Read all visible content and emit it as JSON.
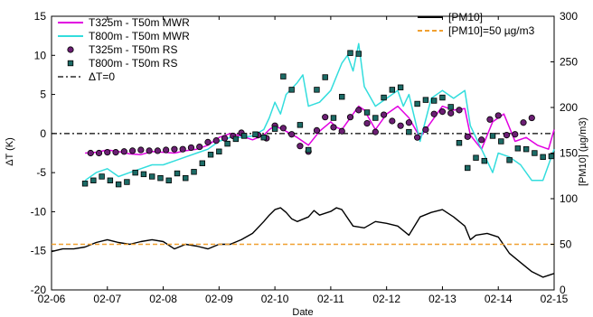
{
  "chart_data": {
    "type": "line",
    "xlabel": "Date",
    "ylabel_left": "ΔT (K)",
    "ylabel_right": "[PM10] (µg/m3)",
    "xlim": [
      0,
      9
    ],
    "ylim_left": [
      -20,
      15
    ],
    "ylim_right": [
      0,
      300
    ],
    "x_tick_values": [
      0,
      1,
      2,
      3,
      4,
      5,
      6,
      7,
      8,
      9
    ],
    "x_tick_labels": [
      "02-06",
      "02-07",
      "02-08",
      "02-09",
      "02-10",
      "02-11",
      "02-12",
      "02-13",
      "02-14",
      "02-15"
    ],
    "y_left_ticks": [
      -20,
      -15,
      -10,
      -5,
      0,
      5,
      10,
      15
    ],
    "y_right_ticks": [
      0,
      50,
      100,
      150,
      200,
      250,
      300
    ],
    "grid": false,
    "legend_left_placement": "top-left",
    "legend_right_placement": "top-right",
    "colors": {
      "mwr325": "#e100e1",
      "mwr800": "#33dddd",
      "rs325": "#6b1f73",
      "rs800": "#1c6b66",
      "pm10": "#000000",
      "threshold": "#f0a030",
      "zero": "#000000"
    },
    "legend_left": [
      {
        "label": "T325m - T50m MWR",
        "key": "mwr325"
      },
      {
        "label": "T800m - T50m MWR",
        "key": "mwr800"
      },
      {
        "label": "T325m - T50m RS",
        "key": "rs325"
      },
      {
        "label": "T800m - T50m RS",
        "key": "rs800"
      },
      {
        "label": "ΔT=0",
        "key": "zero"
      }
    ],
    "legend_right": [
      {
        "label": "[PM10]",
        "key": "pm10"
      },
      {
        "label": "[PM10]=50 µg/m3",
        "key": "threshold"
      }
    ],
    "series": [
      {
        "name": "T325m - T50m MWR",
        "axis": "left",
        "kind": "line",
        "x": [
          0.6,
          0.8,
          1.0,
          1.2,
          1.4,
          1.6,
          1.8,
          2.0,
          2.2,
          2.4,
          2.6,
          2.8,
          3.0,
          3.2,
          3.4,
          3.6,
          3.8,
          3.9,
          4.0,
          4.2,
          4.4,
          4.6,
          4.8,
          5.0,
          5.1,
          5.2,
          5.4,
          5.5,
          5.6,
          5.8,
          6.0,
          6.2,
          6.4,
          6.6,
          6.8,
          7.0,
          7.2,
          7.4,
          7.5,
          7.7,
          7.9,
          8.1,
          8.3,
          8.5,
          8.7,
          8.9,
          9.0
        ],
        "y": [
          -2.5,
          -2.4,
          -2.1,
          -2.3,
          -2.6,
          -2.7,
          -2.3,
          -2.4,
          -2.5,
          -2.2,
          -2.0,
          -1.5,
          -0.5,
          0.0,
          -0.3,
          -0.8,
          -0.2,
          0.5,
          1.0,
          0.3,
          -0.5,
          -1.5,
          0.3,
          1.5,
          0.8,
          0.5,
          2.5,
          3.5,
          3.0,
          0.5,
          2.5,
          3.5,
          2.0,
          -0.5,
          1.5,
          3.5,
          3.0,
          3.2,
          -0.2,
          -2.0,
          1.5,
          2.5,
          -1.0,
          -0.5,
          -1.5,
          -2.0,
          0.5
        ]
      },
      {
        "name": "T800m - T50m MWR",
        "axis": "left",
        "kind": "line",
        "x": [
          0.6,
          0.8,
          1.0,
          1.2,
          1.4,
          1.6,
          1.8,
          2.0,
          2.2,
          2.4,
          2.6,
          2.8,
          3.0,
          3.2,
          3.4,
          3.6,
          3.8,
          3.9,
          4.0,
          4.1,
          4.2,
          4.4,
          4.5,
          4.6,
          4.8,
          5.0,
          5.2,
          5.3,
          5.4,
          5.5,
          5.6,
          5.8,
          6.0,
          6.2,
          6.3,
          6.4,
          6.6,
          6.8,
          7.0,
          7.2,
          7.4,
          7.5,
          7.7,
          7.9,
          8.0,
          8.2,
          8.4,
          8.6,
          8.8,
          9.0
        ],
        "y": [
          -6.0,
          -5.0,
          -4.5,
          -5.5,
          -5.0,
          -4.5,
          -4.0,
          -4.0,
          -3.5,
          -3.0,
          -2.5,
          -2.0,
          -1.0,
          -0.5,
          -0.5,
          -0.3,
          0.5,
          2.0,
          4.0,
          2.5,
          5.0,
          6.5,
          7.5,
          3.5,
          4.0,
          5.5,
          9.0,
          10.0,
          8.0,
          11.5,
          6.0,
          3.5,
          4.5,
          5.5,
          3.5,
          5.0,
          -1.0,
          4.5,
          5.5,
          4.5,
          5.5,
          1.0,
          -2.0,
          -5.0,
          -2.5,
          -3.0,
          -4.0,
          -6.0,
          -6.0,
          -2.0
        ]
      },
      {
        "name": "T325m - T50m RS",
        "axis": "left",
        "kind": "scatter",
        "x": [
          0.7,
          0.85,
          1.0,
          1.15,
          1.3,
          1.45,
          1.6,
          1.75,
          1.9,
          2.05,
          2.2,
          2.35,
          2.5,
          2.65,
          2.8,
          2.95,
          3.1,
          3.25,
          3.4,
          3.7,
          3.85,
          4.0,
          4.15,
          4.3,
          4.45,
          4.6,
          4.75,
          4.9,
          5.05,
          5.2,
          5.35,
          5.5,
          5.65,
          5.8,
          5.95,
          6.1,
          6.25,
          6.4,
          6.55,
          6.7,
          6.85,
          7.0,
          7.15,
          7.3,
          7.45,
          7.7,
          7.85,
          8.0,
          8.15,
          8.3,
          8.45,
          8.6
        ],
        "y": [
          -2.5,
          -2.5,
          -2.4,
          -2.4,
          -2.3,
          -2.2,
          -2.1,
          -2.2,
          -2.2,
          -2.1,
          -2.0,
          -2.0,
          -1.8,
          -1.7,
          -1.1,
          -0.9,
          -0.6,
          -0.3,
          0.1,
          -0.2,
          -0.6,
          1.0,
          0.7,
          -0.1,
          -1.6,
          -2.3,
          0.4,
          2.1,
          0.8,
          0.3,
          2.1,
          3.0,
          1.3,
          0.2,
          2.4,
          1.6,
          1.0,
          1.4,
          -0.5,
          0.5,
          2.5,
          2.8,
          2.6,
          3.0,
          -0.4,
          -0.8,
          1.8,
          2.3,
          -0.2,
          -0.1,
          1.4,
          2.0
        ]
      },
      {
        "name": "T800m - T50m RS",
        "axis": "left",
        "kind": "scatter",
        "x": [
          0.6,
          0.75,
          0.9,
          1.05,
          1.2,
          1.35,
          1.5,
          1.65,
          1.8,
          1.95,
          2.1,
          2.25,
          2.4,
          2.55,
          2.7,
          2.85,
          3.0,
          3.15,
          3.3,
          3.45,
          3.65,
          3.8,
          4.0,
          4.15,
          4.3,
          4.45,
          4.6,
          4.75,
          4.9,
          5.05,
          5.2,
          5.35,
          5.5,
          5.65,
          5.8,
          5.95,
          6.1,
          6.25,
          6.4,
          6.55,
          6.7,
          6.85,
          7.0,
          7.15,
          7.3,
          7.45,
          7.6,
          7.75,
          7.9,
          8.05,
          8.2,
          8.35,
          8.5,
          8.65,
          8.8,
          8.95
        ],
        "y": [
          -6.4,
          -6.0,
          -5.5,
          -6.0,
          -6.5,
          -6.2,
          -5.0,
          -5.2,
          -5.5,
          -5.7,
          -6.0,
          -5.1,
          -5.7,
          -4.9,
          -3.8,
          -2.7,
          -2.3,
          -1.3,
          -0.7,
          -0.3,
          -0.1,
          -0.5,
          0.6,
          7.3,
          5.6,
          1.1,
          -2.1,
          5.6,
          7.2,
          2.0,
          4.7,
          10.3,
          10.2,
          2.7,
          2.0,
          4.6,
          5.6,
          5.9,
          0.2,
          3.8,
          4.3,
          4.2,
          4.6,
          3.4,
          -1.2,
          -4.4,
          -3.1,
          -3.5,
          -0.3,
          -1.0,
          -3.4,
          -1.9,
          -2.0,
          -2.5,
          -3.0,
          -2.9
        ]
      },
      {
        "name": "[PM10]",
        "axis": "right",
        "kind": "line",
        "x": [
          0.0,
          0.2,
          0.4,
          0.6,
          0.8,
          1.0,
          1.2,
          1.4,
          1.6,
          1.8,
          2.0,
          2.2,
          2.4,
          2.6,
          2.8,
          3.0,
          3.2,
          3.4,
          3.6,
          3.8,
          3.9,
          4.0,
          4.1,
          4.2,
          4.3,
          4.4,
          4.6,
          4.7,
          4.8,
          5.0,
          5.1,
          5.2,
          5.4,
          5.6,
          5.8,
          6.0,
          6.2,
          6.4,
          6.6,
          6.8,
          7.0,
          7.2,
          7.4,
          7.5,
          7.6,
          7.8,
          8.0,
          8.2,
          8.4,
          8.6,
          8.8,
          9.0
        ],
        "y": [
          42,
          45,
          45,
          47,
          52,
          55,
          52,
          50,
          53,
          55,
          53,
          45,
          50,
          48,
          45,
          50,
          50,
          55,
          62,
          75,
          82,
          88,
          90,
          85,
          78,
          75,
          80,
          87,
          82,
          86,
          90,
          88,
          70,
          68,
          75,
          73,
          70,
          60,
          80,
          85,
          88,
          80,
          70,
          55,
          60,
          62,
          58,
          40,
          30,
          20,
          14,
          18
        ]
      },
      {
        "name": "[PM10]=50 µg/m3",
        "axis": "right",
        "kind": "hline",
        "value": 50
      }
    ]
  }
}
